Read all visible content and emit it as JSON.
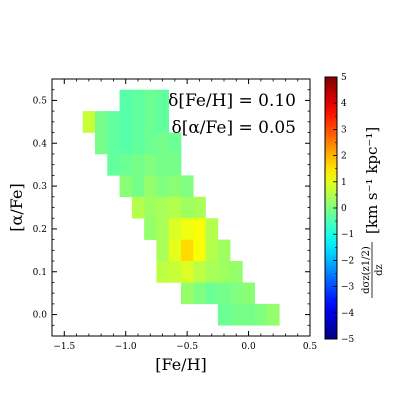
{
  "chart_data": {
    "type": "heatmap",
    "xlabel": "[Fe/H]",
    "ylabel": "[α/Fe]",
    "xlim": [
      -1.6,
      0.5
    ],
    "ylim": [
      -0.05,
      0.55
    ],
    "xticks": [
      -1.5,
      -1.0,
      -0.5,
      0.0,
      0.5
    ],
    "xtick_labels": [
      "−1.5",
      "−1.0",
      "−0.5",
      "0.0",
      "0.5"
    ],
    "yticks": [
      0.0,
      0.1,
      0.2,
      0.3,
      0.4,
      0.5
    ],
    "ytick_labels": [
      "0.0",
      "0.1",
      "0.2",
      "0.3",
      "0.4",
      "0.5"
    ],
    "annotations": [
      "δ[Fe/H] = 0.10",
      "δ[α/Fe] = 0.05"
    ],
    "bin_width_x": 0.1,
    "bin_width_y": 0.05,
    "colorbar": {
      "label": "[km s⁻¹ kpc⁻¹]",
      "quantity_numerator": "dσz(z1/2)",
      "quantity_denominator": "dz",
      "range": [
        -5,
        5
      ],
      "ticks": [
        -5,
        -4,
        -3,
        -2,
        -1,
        0,
        1,
        2,
        3,
        4,
        5
      ],
      "tick_labels": [
        "−5",
        "−4",
        "−3",
        "−2",
        "−1",
        "0",
        "1",
        "2",
        "3",
        "4",
        "5"
      ],
      "colormap": "jet"
    },
    "cells": [
      {
        "x": -1.0,
        "y": 0.5,
        "v": -0.4
      },
      {
        "x": -0.9,
        "y": 0.5,
        "v": -0.3
      },
      {
        "x": -0.8,
        "y": 0.5,
        "v": -0.2
      },
      {
        "x": -0.7,
        "y": 0.5,
        "v": -0.3
      },
      {
        "x": -1.3,
        "y": 0.45,
        "v": 0.7
      },
      {
        "x": -1.2,
        "y": 0.45,
        "v": -0.1
      },
      {
        "x": -1.1,
        "y": 0.45,
        "v": -0.3
      },
      {
        "x": -1.0,
        "y": 0.45,
        "v": -0.4
      },
      {
        "x": -0.9,
        "y": 0.45,
        "v": -0.3
      },
      {
        "x": -0.8,
        "y": 0.45,
        "v": -0.2
      },
      {
        "x": -0.7,
        "y": 0.45,
        "v": -0.3
      },
      {
        "x": -1.2,
        "y": 0.4,
        "v": -0.1
      },
      {
        "x": -1.1,
        "y": 0.4,
        "v": -0.3
      },
      {
        "x": -1.0,
        "y": 0.4,
        "v": -0.4
      },
      {
        "x": -0.9,
        "y": 0.4,
        "v": -0.3
      },
      {
        "x": -0.8,
        "y": 0.4,
        "v": -0.2
      },
      {
        "x": -0.7,
        "y": 0.4,
        "v": -0.1
      },
      {
        "x": -0.6,
        "y": 0.4,
        "v": -0.2
      },
      {
        "x": -1.1,
        "y": 0.35,
        "v": -0.3
      },
      {
        "x": -1.0,
        "y": 0.35,
        "v": -0.2
      },
      {
        "x": -0.9,
        "y": 0.35,
        "v": -0.1
      },
      {
        "x": -0.8,
        "y": 0.35,
        "v": 0.0
      },
      {
        "x": -0.7,
        "y": 0.35,
        "v": -0.1
      },
      {
        "x": -0.6,
        "y": 0.35,
        "v": -0.1
      },
      {
        "x": -1.0,
        "y": 0.3,
        "v": 0.1
      },
      {
        "x": -0.9,
        "y": 0.3,
        "v": -0.1
      },
      {
        "x": -0.8,
        "y": 0.3,
        "v": 0.2
      },
      {
        "x": -0.7,
        "y": 0.3,
        "v": 0.0
      },
      {
        "x": -0.6,
        "y": 0.3,
        "v": 0.1
      },
      {
        "x": -0.5,
        "y": 0.3,
        "v": 0.0
      },
      {
        "x": -0.9,
        "y": 0.25,
        "v": 0.5
      },
      {
        "x": -0.8,
        "y": 0.25,
        "v": 0.3
      },
      {
        "x": -0.7,
        "y": 0.25,
        "v": 0.4
      },
      {
        "x": -0.6,
        "y": 0.25,
        "v": 0.5
      },
      {
        "x": -0.5,
        "y": 0.25,
        "v": 0.3
      },
      {
        "x": -0.4,
        "y": 0.25,
        "v": 0.4
      },
      {
        "x": -0.8,
        "y": 0.2,
        "v": 0.2
      },
      {
        "x": -0.7,
        "y": 0.2,
        "v": 0.4
      },
      {
        "x": -0.6,
        "y": 0.2,
        "v": 0.9
      },
      {
        "x": -0.5,
        "y": 0.2,
        "v": 1.1
      },
      {
        "x": -0.4,
        "y": 0.2,
        "v": 1.2
      },
      {
        "x": -0.3,
        "y": 0.2,
        "v": 0.5
      },
      {
        "x": -0.7,
        "y": 0.15,
        "v": 0.4
      },
      {
        "x": -0.6,
        "y": 0.15,
        "v": 1.0
      },
      {
        "x": -0.5,
        "y": 0.15,
        "v": 1.6
      },
      {
        "x": -0.4,
        "y": 0.15,
        "v": 1.2
      },
      {
        "x": -0.3,
        "y": 0.15,
        "v": 0.5
      },
      {
        "x": -0.2,
        "y": 0.15,
        "v": 0.3
      },
      {
        "x": -0.7,
        "y": 0.1,
        "v": 0.6
      },
      {
        "x": -0.6,
        "y": 0.1,
        "v": 0.7
      },
      {
        "x": -0.5,
        "y": 0.1,
        "v": 0.9
      },
      {
        "x": -0.4,
        "y": 0.1,
        "v": 0.6
      },
      {
        "x": -0.3,
        "y": 0.1,
        "v": 0.4
      },
      {
        "x": -0.2,
        "y": 0.1,
        "v": 0.3
      },
      {
        "x": -0.1,
        "y": 0.1,
        "v": 0.2
      },
      {
        "x": -0.5,
        "y": 0.05,
        "v": 0.2
      },
      {
        "x": -0.4,
        "y": 0.05,
        "v": 0.0
      },
      {
        "x": -0.3,
        "y": 0.05,
        "v": -0.2
      },
      {
        "x": -0.2,
        "y": 0.05,
        "v": -0.1
      },
      {
        "x": -0.1,
        "y": 0.05,
        "v": 0.0
      },
      {
        "x": 0.0,
        "y": 0.05,
        "v": 0.1
      },
      {
        "x": -0.2,
        "y": 0.0,
        "v": -0.2
      },
      {
        "x": -0.1,
        "y": 0.0,
        "v": -0.1
      },
      {
        "x": 0.0,
        "y": 0.0,
        "v": -0.1
      },
      {
        "x": 0.1,
        "y": 0.0,
        "v": 0.0
      },
      {
        "x": 0.2,
        "y": 0.0,
        "v": 0.2
      }
    ]
  }
}
